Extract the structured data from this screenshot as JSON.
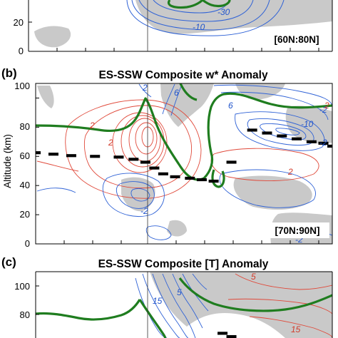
{
  "colors": {
    "anomaly_positive": "#e0493a",
    "anomaly_negative": "#2f62d6",
    "green_line": "#1f7d1f",
    "stratopause": "#000000",
    "shading": "#c9c9c9"
  },
  "panel_a": {
    "region": "[60N:80N]",
    "ytick_labels": [
      "20",
      "0"
    ],
    "contour_labels": [
      "-30",
      "-10"
    ]
  },
  "panel_b": {
    "letter": "(b)",
    "title": "ES-SSW Composite w* Anomaly",
    "ylabel": "Altitude (km)",
    "ytick_labels": [
      "100",
      "80",
      "60",
      "40",
      "20",
      "0"
    ],
    "region": "[70N:90N]",
    "contour_labels_blue": [
      "6",
      "2",
      "6",
      "-2",
      "-2",
      "-10",
      "-2",
      "-2"
    ],
    "contour_labels_red": [
      "2",
      "2",
      "2",
      "2"
    ]
  },
  "panel_c": {
    "letter": "(c)",
    "title": "ES-SSW Composite [T] Anomaly",
    "ytick_labels": [
      "100",
      "80"
    ],
    "contour_labels_blue": [
      "15",
      "5"
    ],
    "contour_labels_red": [
      "5",
      "15"
    ]
  },
  "chart_data": [
    {
      "type": "contour",
      "panel": "a",
      "region": "[60N:80N]",
      "ylim_visible": [
        0,
        30
      ],
      "yticks": [
        0,
        20
      ],
      "contour_labels": [
        -30,
        -10
      ]
    },
    {
      "type": "contour",
      "panel": "b",
      "title": "ES-SSW Composite w* Anomaly",
      "ylabel": "Altitude (km)",
      "region": "[70N:90N]",
      "ylim": [
        0,
        110
      ],
      "yticks": [
        0,
        20,
        40,
        60,
        80,
        100
      ],
      "onset_marker": "vertical line",
      "series": [
        {
          "name": "stratopause",
          "points": [
            [
              0.0,
              62.5
            ],
            [
              0.06,
              61.5
            ],
            [
              0.12,
              60.5
            ],
            [
              0.2,
              60
            ],
            [
              0.28,
              59.5
            ],
            [
              0.33,
              58
            ],
            [
              0.37,
              56
            ],
            [
              0.4,
              52
            ],
            [
              0.43,
              48
            ],
            [
              0.47,
              46
            ],
            [
              0.52,
              45
            ],
            [
              0.56,
              44
            ],
            [
              0.6,
              43
            ],
            [
              0.66,
              56
            ],
            [
              0.73,
              78
            ],
            [
              0.78,
              76
            ],
            [
              0.83,
              74
            ],
            [
              0.88,
              72
            ],
            [
              0.93,
              70
            ],
            [
              0.97,
              69
            ],
            [
              1.0,
              67
            ]
          ]
        }
      ],
      "green_contour": "zero-wind line",
      "contour_labels_blue": [
        6,
        2,
        6,
        -2,
        -2,
        -10,
        -2,
        -2
      ],
      "contour_labels_red": [
        2,
        2,
        2,
        2
      ]
    },
    {
      "type": "contour",
      "panel": "c",
      "title": "ES-SSW Composite [T] Anomaly",
      "ylim_visible": [
        70,
        110
      ],
      "yticks": [
        80,
        100
      ],
      "contour_labels_blue": [
        15,
        5
      ],
      "contour_labels_red": [
        5,
        15
      ]
    }
  ]
}
